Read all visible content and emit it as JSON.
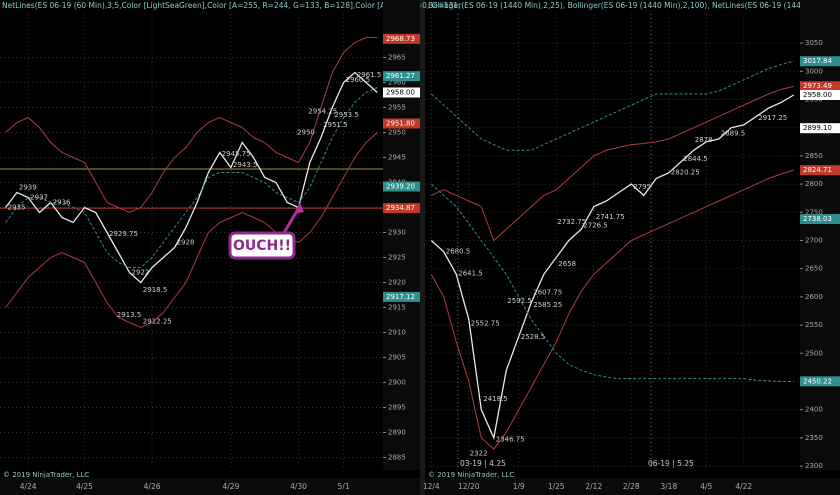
{
  "chart_data": [
    {
      "type": "line",
      "header": "NetLines(ES 06-19 (60 Min),3,5,Color [LightSeaGreen],Color [A=255, R=244, G=133, B=128],Color [A=255, R=0, G=131,",
      "footer": "© 2019 NinjaTrader, LLC",
      "annotation": "OUCH!!",
      "categories": [
        null,
        null,
        "4/24",
        null,
        null,
        null,
        null,
        "4/25",
        null,
        null,
        null,
        null,
        null,
        "4/26",
        null,
        null,
        null,
        null,
        null,
        null,
        "4/29",
        null,
        null,
        null,
        null,
        null,
        "4/30",
        null,
        null,
        null,
        "5/1",
        null,
        null,
        null
      ],
      "ylim": [
        2882.5,
        2973.7
      ],
      "yticks": [
        2885,
        2890,
        2895,
        2900,
        2905,
        2910,
        2915,
        2920,
        2925,
        2930,
        2935,
        2940,
        2945,
        2950,
        2955,
        2960,
        2965
      ],
      "grid": true,
      "series": [
        {
          "color": "#e8e8e8",
          "values": [
            2935,
            2938,
            2937,
            2934,
            2936,
            2933,
            2932,
            2935,
            2934,
            2930,
            2926,
            2922,
            2920,
            2923,
            2925,
            2927,
            2931,
            2936,
            2942,
            2946,
            2943,
            2948,
            2945,
            2941,
            2940,
            2936,
            2935,
            2944,
            2949,
            2955,
            2960,
            2962,
            2960,
            2958
          ]
        },
        {
          "color": "#b23a3a",
          "values": [
            2950,
            2952,
            2953,
            2951,
            2948,
            2946,
            2945,
            2944,
            2940,
            2936,
            2935,
            2934,
            2935,
            2938,
            2942,
            2945,
            2947,
            2950,
            2952,
            2953,
            2952,
            2951,
            2949,
            2948,
            2946,
            2945,
            2944,
            2948,
            2955,
            2962,
            2966,
            2968,
            2969,
            2969
          ]
        },
        {
          "color": "#b23a3a",
          "values": [
            2915,
            2918,
            2921,
            2923,
            2925,
            2926,
            2925,
            2924,
            2920,
            2916,
            2913,
            2912,
            2911,
            2912,
            2914,
            2917,
            2920,
            2925,
            2930,
            2932,
            2933,
            2934,
            2933,
            2932,
            2930,
            2929,
            2928,
            2930,
            2933,
            2937,
            2941,
            2945,
            2948,
            2950
          ]
        },
        {
          "color": "#2f8f8f",
          "values": [
            2932,
            2935,
            2937,
            2937,
            2936,
            2936,
            2935,
            2934,
            2930,
            2926,
            2924,
            2923,
            2923,
            2925,
            2928,
            2931,
            2934,
            2937,
            2941,
            2942,
            2942,
            2942,
            2941,
            2940,
            2938,
            2937,
            2936,
            2939,
            2944,
            2949,
            2953,
            2956,
            2958,
            2959
          ]
        }
      ],
      "hlines": [
        {
          "value": 2942.7,
          "color": "#9a9a2a"
        },
        {
          "value": 2934.87,
          "color": "#b23a3a"
        }
      ],
      "price_tags": [
        {
          "value": 2968.73,
          "color": "#c0392b"
        },
        {
          "value": 2961.27,
          "color": "#2f8f8f"
        },
        {
          "value": 2958,
          "label": "2958.00",
          "color": "#ffffff"
        },
        {
          "value": 2951.8,
          "label": "2951.80",
          "color": "#c0392b"
        },
        {
          "value": 2939.2,
          "label": "2939.20",
          "color": "#2f8f8f"
        },
        {
          "value": 2934.87,
          "color": "#c0392b"
        },
        {
          "value": 2917.12,
          "color": "#2f8f8f"
        }
      ],
      "level_labels": [
        2961.5,
        2960.5,
        2953.5,
        2954.25,
        2951.5,
        2950,
        2945.75,
        2943.5,
        2939,
        2937,
        2935,
        2936,
        2929.75,
        2928,
        2922,
        2918.5,
        2913.5,
        2912.25
      ]
    },
    {
      "type": "line",
      "header": "Bollinger(ES 06-19 (1440 Min),2,25), Bollinger(ES 06-19 (1440 Min),2,100), NetLines(ES 06-19 (1440 Min),3,5,Color",
      "footer": "© 2019 NinjaTrader, LLC",
      "markers": [
        "03-19 | 4.25",
        "06-19 | 5.25"
      ],
      "categories": [
        "12/4",
        null,
        null,
        "12/20",
        null,
        null,
        null,
        "1/9",
        null,
        null,
        "1/25",
        null,
        null,
        "2/12",
        null,
        null,
        "2/28",
        null,
        null,
        "3/18",
        null,
        null,
        "4/5",
        null,
        null,
        "4/22",
        null,
        null,
        null,
        null
      ],
      "ylim": [
        2293,
        3101.6
      ],
      "yticks": [
        2300,
        2350,
        2400,
        2450,
        2500,
        2550,
        2600,
        2650,
        2700,
        2750,
        2800,
        2850,
        2900,
        2950,
        3000,
        3050
      ],
      "grid": true,
      "series": [
        {
          "color": "#e8e8e8",
          "values": [
            2700,
            2680,
            2640,
            2560,
            2400,
            2350,
            2470,
            2530,
            2590,
            2640,
            2670,
            2700,
            2720,
            2760,
            2770,
            2785,
            2800,
            2780,
            2810,
            2820,
            2840,
            2860,
            2875,
            2880,
            2900,
            2905,
            2920,
            2935,
            2945,
            2958
          ]
        },
        {
          "color": "#b23a3a",
          "values": [
            2780,
            2790,
            2780,
            2770,
            2760,
            2700,
            2720,
            2740,
            2760,
            2780,
            2790,
            2810,
            2830,
            2850,
            2860,
            2865,
            2870,
            2872,
            2875,
            2880,
            2890,
            2900,
            2910,
            2920,
            2930,
            2940,
            2950,
            2960,
            2968,
            2973
          ]
        },
        {
          "color": "#b23a3a",
          "values": [
            2640,
            2600,
            2520,
            2450,
            2350,
            2330,
            2360,
            2400,
            2440,
            2480,
            2520,
            2570,
            2610,
            2640,
            2660,
            2680,
            2700,
            2710,
            2720,
            2730,
            2740,
            2750,
            2760,
            2770,
            2780,
            2790,
            2800,
            2810,
            2818,
            2825
          ]
        },
        {
          "color": "#2f8f8f",
          "values": [
            2960,
            2940,
            2920,
            2900,
            2880,
            2870,
            2860,
            2860,
            2860,
            2870,
            2880,
            2890,
            2900,
            2910,
            2920,
            2930,
            2940,
            2950,
            2960,
            2960,
            2960,
            2960,
            2960,
            2965,
            2975,
            2985,
            2995,
            3005,
            3012,
            3018
          ]
        },
        {
          "color": "#2f8f8f",
          "values": [
            2800,
            2780,
            2760,
            2730,
            2700,
            2670,
            2640,
            2600,
            2560,
            2530,
            2500,
            2480,
            2470,
            2462,
            2458,
            2455,
            2455,
            2455,
            2455,
            2455,
            2455,
            2455,
            2455,
            2455,
            2455,
            2455,
            2452,
            2451,
            2450,
            2450
          ]
        }
      ],
      "hlines": [],
      "price_tags": [
        {
          "value": 3017.84,
          "color": "#2f8f8f"
        },
        {
          "value": 2973.49,
          "color": "#c0392b"
        },
        {
          "value": 2958,
          "label": "2958.00",
          "color": "#ffffff"
        },
        {
          "value": 2899.1,
          "label": "2899.10",
          "color": "#ffffff"
        },
        {
          "value": 2824.71,
          "color": "#c0392b"
        },
        {
          "value": 2738.03,
          "color": "#2f8f8f"
        },
        {
          "value": 2450.22,
          "color": "#2f8f8f"
        }
      ],
      "level_labels": [
        2917.25,
        2889.5,
        2878,
        2844.5,
        2820.25,
        2795,
        2741.75,
        2726.5,
        2732.75,
        2680.5,
        2658,
        2641.5,
        2607.75,
        2592.5,
        2585.25,
        2552.75,
        2528.5,
        2418.5,
        2346.75,
        2322
      ]
    }
  ]
}
